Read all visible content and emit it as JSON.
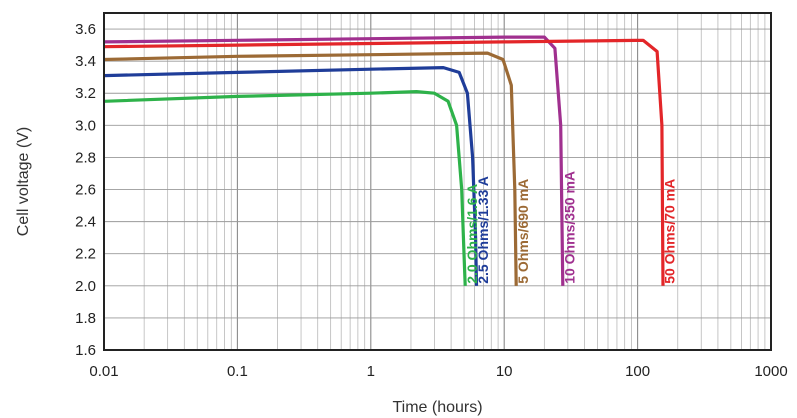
{
  "chart_data": {
    "type": "line",
    "xlabel": "Time (hours)",
    "ylabel": "Cell voltage (V)",
    "xscale": "log",
    "xlim": [
      0.01,
      1000
    ],
    "ylim": [
      1.6,
      3.7
    ],
    "grid": true,
    "x_ticks": [
      {
        "value": 0.01,
        "label": "0.01"
      },
      {
        "value": 0.1,
        "label": "0.1"
      },
      {
        "value": 1,
        "label": "1"
      },
      {
        "value": 10,
        "label": "10"
      },
      {
        "value": 100,
        "label": "100"
      },
      {
        "value": 1000,
        "label": "1000"
      }
    ],
    "y_ticks": [
      {
        "value": 1.6,
        "label": "1.6"
      },
      {
        "value": 1.8,
        "label": "1.8"
      },
      {
        "value": 2.0,
        "label": "2.0"
      },
      {
        "value": 2.2,
        "label": "2.2"
      },
      {
        "value": 2.4,
        "label": "2.4"
      },
      {
        "value": 2.6,
        "label": "2.6"
      },
      {
        "value": 2.8,
        "label": "2.8"
      },
      {
        "value": 3.0,
        "label": "3.0"
      },
      {
        "value": 3.2,
        "label": "3.2"
      },
      {
        "value": 3.4,
        "label": "3.4"
      },
      {
        "value": 3.6,
        "label": "3.6"
      }
    ],
    "series": [
      {
        "name": "2.0 Ohms/1.6 A",
        "color": "#2eb24a",
        "x": [
          0.01,
          0.1,
          1,
          2.2,
          3.0,
          3.8,
          4.4,
          4.8,
          5.0,
          5.1
        ],
        "y": [
          3.15,
          3.18,
          3.2,
          3.21,
          3.2,
          3.15,
          3.0,
          2.6,
          2.2,
          2.0
        ]
      },
      {
        "name": "2.5 Ohms/1.33 A",
        "color": "#1f3d99",
        "x": [
          0.01,
          0.1,
          1,
          3.5,
          4.6,
          5.3,
          5.8,
          6.1,
          6.2
        ],
        "y": [
          3.31,
          3.33,
          3.35,
          3.36,
          3.33,
          3.2,
          2.8,
          2.3,
          2.0
        ]
      },
      {
        "name": "5 Ohms/690 mA",
        "color": "#9c6a35",
        "x": [
          0.01,
          0.1,
          1,
          7.5,
          9.8,
          11.3,
          12.0,
          12.3
        ],
        "y": [
          3.41,
          3.43,
          3.44,
          3.45,
          3.41,
          3.25,
          2.6,
          2.0
        ]
      },
      {
        "name": "10 Ohms/350 mA",
        "color": "#a0308f",
        "x": [
          0.01,
          0.1,
          1,
          10,
          20,
          24,
          26.5,
          27.5
        ],
        "y": [
          3.52,
          3.53,
          3.54,
          3.55,
          3.55,
          3.48,
          3.0,
          2.0
        ]
      },
      {
        "name": "50 Ohms/70 mA",
        "color": "#e32629",
        "x": [
          0.01,
          0.1,
          1,
          10,
          110,
          140,
          152,
          155
        ],
        "y": [
          3.49,
          3.5,
          3.51,
          3.52,
          3.53,
          3.46,
          3.0,
          2.0
        ]
      }
    ],
    "series_labels": [
      {
        "text": "2.0 Ohms/1.6 A",
        "color": "#2eb24a"
      },
      {
        "text": "2.5 Ohms/1.33 A",
        "color": "#1f3d99"
      },
      {
        "text": "5 Ohms/690 mA",
        "color": "#9c6a35"
      },
      {
        "text": "10 Ohms/350 mA",
        "color": "#a0308f"
      },
      {
        "text": "50 Ohms/70 mA",
        "color": "#e32629"
      }
    ]
  }
}
